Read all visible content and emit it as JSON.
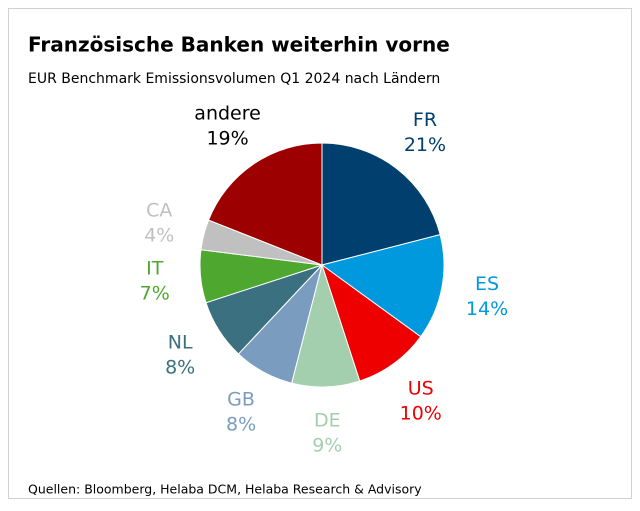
{
  "chart_data": {
    "type": "pie",
    "title": "Französische Banken weiterhin vorne",
    "subtitle": "EUR Benchmark Emissionsvolumen Q1 2024 nach Ländern",
    "categories": [
      "FR",
      "ES",
      "US",
      "DE",
      "GB",
      "NL",
      "IT",
      "CA",
      "andere"
    ],
    "values": [
      21,
      14,
      10,
      9,
      8,
      8,
      7,
      4,
      19
    ],
    "value_labels": [
      "21%",
      "14%",
      "10%",
      "9%",
      "8%",
      "8%",
      "7%",
      "4%",
      "19%"
    ],
    "colors": [
      "#003f6e",
      "#0099dd",
      "#ee0000",
      "#a3cfae",
      "#7a9cbe",
      "#3a7080",
      "#4ea82f",
      "#c0c0c0",
      "#9c0000"
    ],
    "label_colors": [
      "#003f6e",
      "#0099dd",
      "#ee0000",
      "#a3cfae",
      "#7a9cbe",
      "#3a7080",
      "#4ea82f",
      "#c0c0c0",
      "#000000"
    ],
    "source": "Quellen: Bloomberg, Helaba DCM, Helaba Research & Advisory"
  }
}
